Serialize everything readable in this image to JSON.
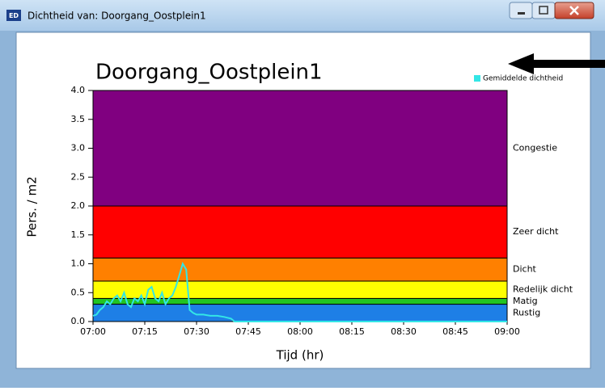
{
  "window": {
    "title": "Dichtheid van: Doorgang_Oostplein1",
    "icon": "ED"
  },
  "chart_data": {
    "type": "banded-line",
    "title": "Doorgang_Oostplein1",
    "x_label": "Tijd (hr)",
    "y_label": "Pers. / m2",
    "xlim": [
      "07:00",
      "09:00"
    ],
    "xticks": [
      "07:00",
      "07:15",
      "07:30",
      "07:45",
      "08:00",
      "08:15",
      "08:30",
      "08:45",
      "09:00"
    ],
    "ylim": [
      0,
      4
    ],
    "yticks": [
      {
        "value": 0,
        "label": "0.0"
      },
      0.5,
      {
        "value": 1,
        "label": "1.0"
      },
      1.5,
      {
        "value": 2,
        "label": "2.0"
      },
      2.5,
      {
        "value": 3,
        "label": "3.0"
      },
      3.5,
      {
        "value": 4,
        "label": "4.0"
      }
    ],
    "bands": [
      {
        "name": "Rustig",
        "from": 0,
        "to": 0.3,
        "color": "#1e7fe6"
      },
      {
        "name": "Matig",
        "from": 0.3,
        "to": 0.4,
        "color": "#22c422"
      },
      {
        "name": "Redelijk dicht",
        "from": 0.4,
        "to": 0.7,
        "color": "#ffff00"
      },
      {
        "name": "Dicht",
        "from": 0.7,
        "to": 1.1,
        "color": "#ff8000"
      },
      {
        "name": "Zeer dicht",
        "from": 1.1,
        "to": 2.0,
        "color": "#ff0000"
      },
      {
        "name": "Congestie",
        "from": 2.0,
        "to": 4.0,
        "color": "#800080"
      }
    ],
    "legend": "top-right",
    "series": [
      {
        "name": "Gemiddelde dichtheid",
        "color": "#33e6e6",
        "x": [
          "07:00",
          "07:01",
          "07:02",
          "07:03",
          "07:04",
          "07:05",
          "07:06",
          "07:07",
          "07:08",
          "07:09",
          "07:10",
          "07:11",
          "07:12",
          "07:13",
          "07:14",
          "07:15",
          "07:16",
          "07:17",
          "07:18",
          "07:19",
          "07:20",
          "07:21",
          "07:22",
          "07:23",
          "07:24",
          "07:25",
          "07:26",
          "07:27",
          "07:28",
          "07:29",
          "07:30",
          "07:32",
          "07:34",
          "07:36",
          "07:38",
          "07:40",
          "07:41",
          "09:00"
        ],
        "values": [
          0.1,
          0.12,
          0.2,
          0.25,
          0.35,
          0.3,
          0.4,
          0.45,
          0.35,
          0.5,
          0.3,
          0.25,
          0.4,
          0.35,
          0.45,
          0.3,
          0.55,
          0.6,
          0.4,
          0.35,
          0.5,
          0.3,
          0.4,
          0.45,
          0.6,
          0.8,
          1.0,
          0.9,
          0.2,
          0.15,
          0.12,
          0.12,
          0.1,
          0.1,
          0.08,
          0.05,
          0.0,
          0.0
        ]
      }
    ]
  }
}
